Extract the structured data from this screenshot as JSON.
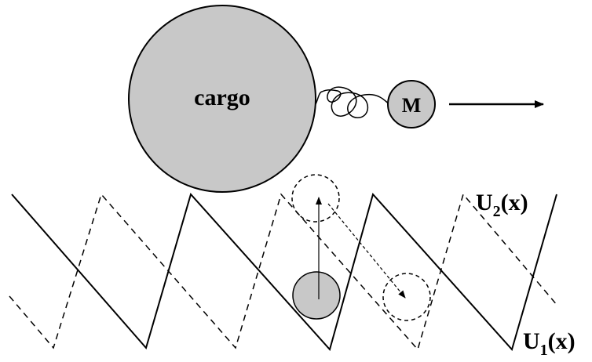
{
  "labels": {
    "cargo": "cargo",
    "motor": "M",
    "u2_main": "U",
    "u2_sub": "2",
    "u2_arg": "(x)",
    "u1_main": "U",
    "u1_sub": "1",
    "u1_arg": "(x)"
  },
  "colors": {
    "particle_fill": "#c8c8c8",
    "stroke": "#000000",
    "background": "#ffffff"
  }
}
